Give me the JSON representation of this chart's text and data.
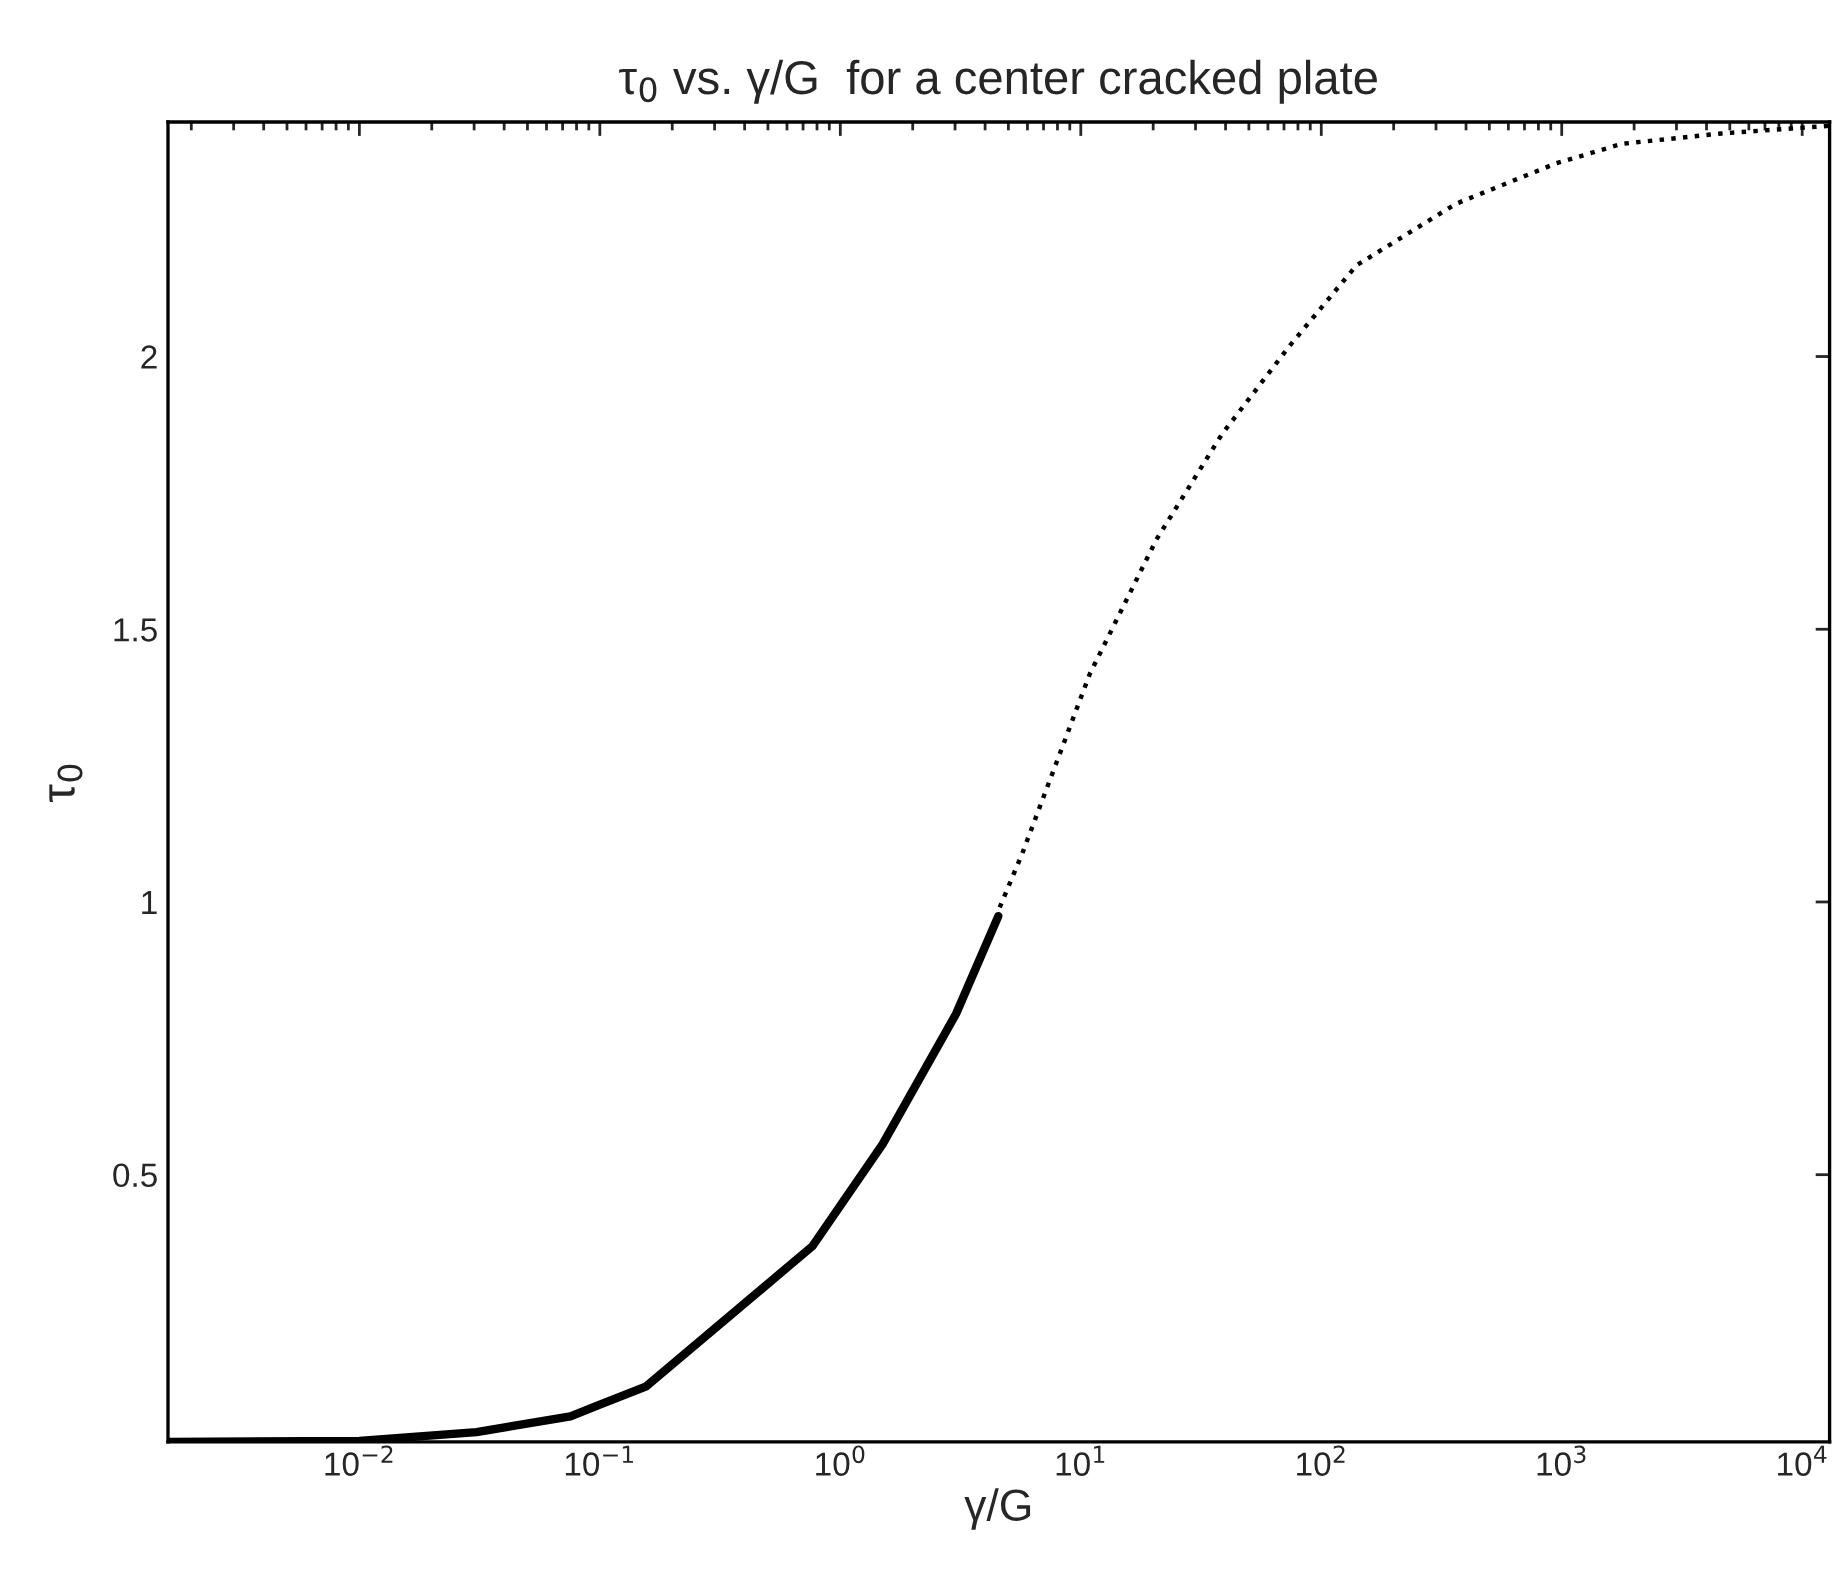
{
  "chart_data": {
    "type": "line",
    "title": "τ$_{0}$ vs. γ/G  for a center cracked plate",
    "xlabel": "γ/G",
    "ylabel": "τ$_{0}$",
    "log": "x",
    "grid": false,
    "xlim": [
      0.0016,
      13000
    ],
    "ylim": [
      0.01,
      2.43
    ],
    "xticks": [
      {
        "value": 0.01,
        "label": "10$^{−2}$"
      },
      {
        "value": 0.1,
        "label": "10$^{−1}$"
      },
      {
        "value": 1,
        "label": "10$^{0}$"
      },
      {
        "value": 10,
        "label": "10$^{1}$"
      },
      {
        "value": 100,
        "label": "10$^{2}$"
      },
      {
        "value": 1000,
        "label": "10$^{3}$"
      },
      {
        "value": 10000,
        "label": "10$^{4}$"
      }
    ],
    "yticks": [
      0.5,
      1,
      1.5,
      2
    ],
    "series": [
      {
        "color": "#000000",
        "line_style": "solid",
        "x": [
          0.0016,
          0.01,
          0.0307,
          0.0755,
          0.097,
          0.156,
          0.766,
          1.5,
          3.03,
          4.54
        ],
        "values": [
          0.01,
          0.012,
          0.028,
          0.057,
          0.076,
          0.112,
          0.369,
          0.556,
          0.795,
          0.974
        ]
      },
      {
        "color": "#000000",
        "line_style": "dotted",
        "x": [
          4.6,
          5.7,
          10.9,
          20.6,
          38.7,
          74,
          140,
          363,
          946,
          1780,
          4630,
          13000
        ],
        "values": [
          0.99,
          1.088,
          1.418,
          1.664,
          1.858,
          2.02,
          2.167,
          2.28,
          2.354,
          2.39,
          2.409,
          2.423
        ]
      }
    ]
  }
}
